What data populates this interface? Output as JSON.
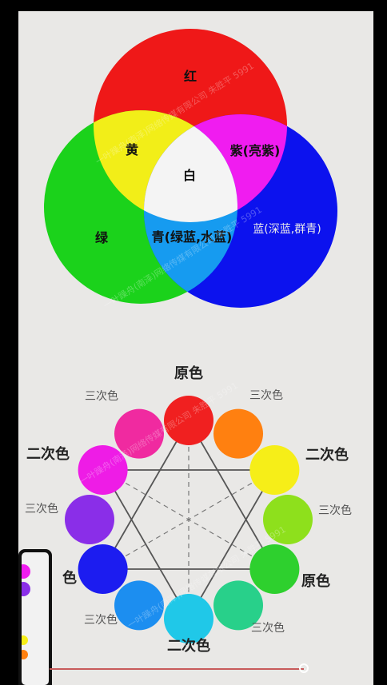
{
  "venn": {
    "labels": {
      "red": "红",
      "yellow": "黄",
      "magenta": "紫(亮紫)",
      "white": "白",
      "green": "绿",
      "cyan": "青(绿蓝,水蓝)",
      "blue": "蓝(深蓝,群青)"
    },
    "colors": {
      "red": "#ef1818",
      "green": "#1bd21b",
      "blue": "#0c12ee",
      "yellow": "#f2ee18",
      "magenta": "#f01cf0",
      "cyan": "#169bf0",
      "white": "#f4f4f4"
    }
  },
  "wheel": {
    "labels": {
      "primary_top": "原色",
      "primary_bottom_right": "原色",
      "primary_bottom_left": "色",
      "secondary_left": "二次色",
      "secondary_right": "二次色",
      "secondary_bottom": "二次色",
      "tertiary_top_left": "三次色",
      "tertiary_top_right": "三次色",
      "tertiary_mid_left": "三次色",
      "tertiary_mid_right": "三次色",
      "tertiary_bottom_left": "三次色",
      "tertiary_bottom_right": "三次色"
    },
    "colors": [
      "#f02020",
      "#ff8010",
      "#f6ee18",
      "#8ee01c",
      "#2ed02e",
      "#28d08a",
      "#20c8e8",
      "#1c8ef0",
      "#1c1cf0",
      "#8a2ee8",
      "#ee1ce6",
      "#f02aa0"
    ]
  },
  "watermark": "一叶躁舟(南泽)网络传媒有限公司 朱胜平 5991"
}
